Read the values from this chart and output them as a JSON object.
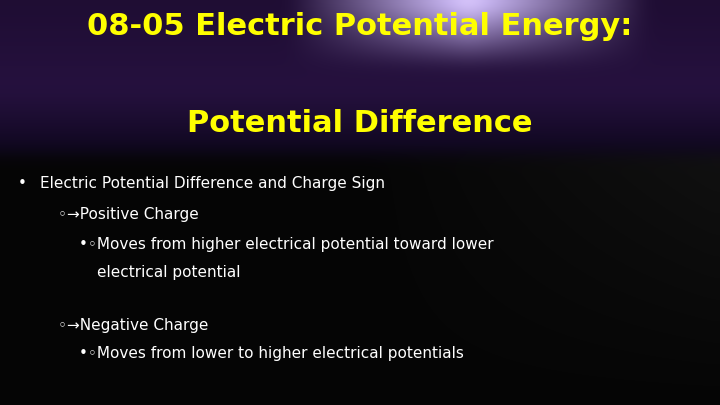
{
  "title_line1": "08-05 Electric Potential Energy:",
  "title_line2": "Potential Difference",
  "title_color": "#FFFF00",
  "title_fontsize": 22,
  "bullet1_text": "Electric Potential Difference and Charge Sign",
  "bullet1_color": "#FFFFFF",
  "bullet1_fontsize": 11,
  "sub1_text": "◦→Positive Charge",
  "sub1_color": "#FFFFFF",
  "sub1_fontsize": 11,
  "sub2a_text": "•◦Moves from higher electrical potential toward lower",
  "sub2b_text": "electrical potential",
  "sub2_color": "#FFFFFF",
  "sub2_fontsize": 11,
  "sub3_text": "◦→Negative Charge",
  "sub3_color": "#FFFFFF",
  "sub3_fontsize": 11,
  "sub4_text": "•◦Moves from lower to higher electrical potentials",
  "sub4_color": "#FFFFFF",
  "sub4_fontsize": 11,
  "bg_color": "#000000"
}
